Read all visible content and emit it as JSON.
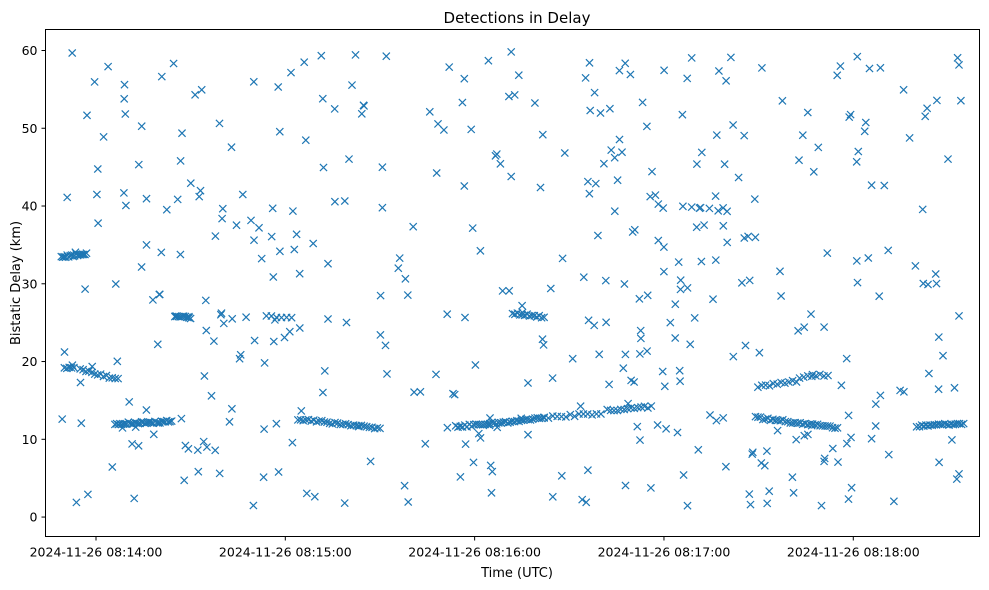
{
  "chart_data": {
    "type": "scatter",
    "title": "Detections in Delay",
    "xlabel": "Time (UTC)",
    "ylabel": "Bistatic Delay (km)",
    "marker": "x",
    "marker_color": "#1f77b4",
    "x_unit": "seconds after 2024-11-26 08:13:00",
    "xlim": [
      44,
      340
    ],
    "ylim": [
      -2.5,
      62.7
    ],
    "x_ticks": [
      {
        "value": 60,
        "label": "2024-11-26 08:14:00"
      },
      {
        "value": 120,
        "label": "2024-11-26 08:15:00"
      },
      {
        "value": 180,
        "label": "2024-11-26 08:16:00"
      },
      {
        "value": 240,
        "label": "2024-11-26 08:17:00"
      },
      {
        "value": 300,
        "label": "2024-11-26 08:18:00"
      }
    ],
    "y_ticks": [
      0,
      10,
      20,
      30,
      40,
      50,
      60
    ],
    "generator": {
      "seed": 20241126,
      "x_start": 49,
      "x_end": 335,
      "noise_count": 430,
      "noise_y_range": [
        1,
        60
      ],
      "tracks": [
        {
          "x0": 49,
          "x1": 57,
          "y0": 33.5,
          "y1": 33.8,
          "n": 18
        },
        {
          "x0": 50,
          "x1": 53,
          "y0": 19.3,
          "y1": 19.1,
          "n": 5
        },
        {
          "x0": 55,
          "x1": 67,
          "y0": 19.0,
          "y1": 17.7,
          "n": 14
        },
        {
          "x0": 66,
          "x1": 84,
          "y0": 12.0,
          "y1": 12.3,
          "n": 35
        },
        {
          "x0": 85,
          "x1": 90,
          "y0": 25.8,
          "y1": 25.6,
          "n": 10
        },
        {
          "x0": 114,
          "x1": 122,
          "y0": 25.8,
          "y1": 25.6,
          "n": 6
        },
        {
          "x0": 124,
          "x1": 150,
          "y0": 12.6,
          "y1": 11.4,
          "n": 32
        },
        {
          "x0": 174,
          "x1": 202,
          "y0": 11.6,
          "y1": 12.7,
          "n": 40
        },
        {
          "x0": 192,
          "x1": 202,
          "y0": 26.2,
          "y1": 25.7,
          "n": 14
        },
        {
          "x0": 202,
          "x1": 220,
          "y0": 12.8,
          "y1": 13.3,
          "n": 14
        },
        {
          "x0": 222,
          "x1": 236,
          "y0": 13.7,
          "y1": 14.2,
          "n": 14
        },
        {
          "x0": 246,
          "x1": 260,
          "y0": 40.0,
          "y1": 39.3,
          "n": 6
        },
        {
          "x0": 271,
          "x1": 282,
          "y0": 16.8,
          "y1": 17.5,
          "n": 10
        },
        {
          "x0": 283,
          "x1": 292,
          "y0": 18.0,
          "y1": 18.3,
          "n": 8
        },
        {
          "x0": 269,
          "x1": 295,
          "y0": 12.8,
          "y1": 11.5,
          "n": 34
        },
        {
          "x0": 321,
          "x1": 335,
          "y0": 11.7,
          "y1": 12.0,
          "n": 22
        }
      ]
    }
  }
}
